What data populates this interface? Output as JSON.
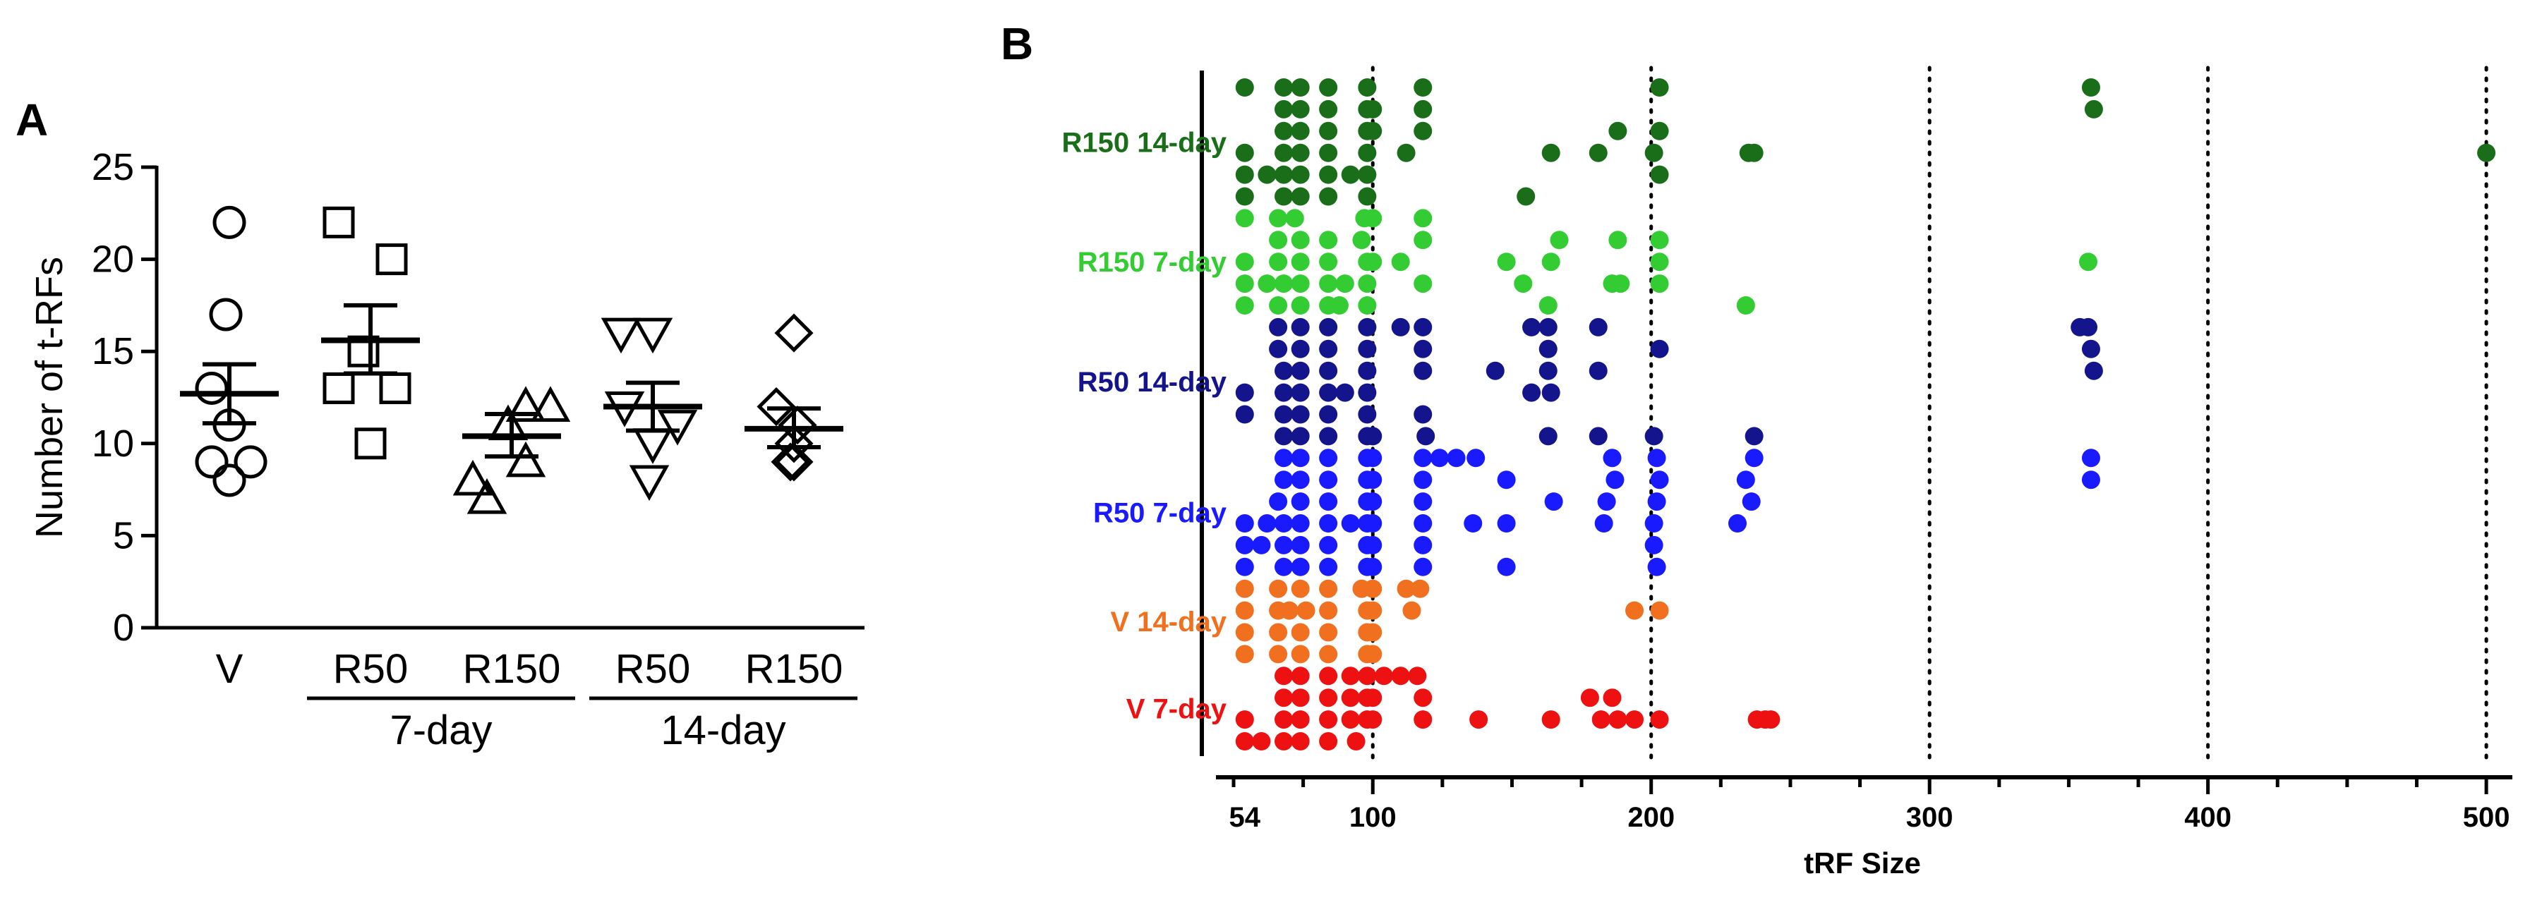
{
  "chart_data": [
    {
      "panel": "A",
      "type": "scatter",
      "ylabel": "Number of t-RFs",
      "ylim": [
        0,
        25
      ],
      "yticks": [
        "0",
        "5",
        "10",
        "15",
        "20",
        "25"
      ],
      "groups": [
        {
          "label": "V",
          "marker": "circle",
          "values": [
            22,
            17,
            13,
            11,
            9,
            9,
            8
          ],
          "mean": 12.7,
          "sem_low": 11.1,
          "sem_high": 14.3
        },
        {
          "label": "R50",
          "marker": "square",
          "values": [
            22,
            20,
            15,
            13,
            13,
            10
          ],
          "mean": 15.6,
          "sem_low": 13.8,
          "sem_high": 17.5
        },
        {
          "label": "R150",
          "marker": "triangle-up",
          "values": [
            12,
            12,
            11,
            9,
            8,
            7
          ],
          "mean": 10.4,
          "sem_low": 9.3,
          "sem_high": 11.6
        },
        {
          "label": "R50",
          "marker": "triangle-down",
          "values": [
            16,
            16,
            12,
            11,
            10,
            8
          ],
          "mean": 12.0,
          "sem_low": 10.7,
          "sem_high": 13.3
        },
        {
          "label": "R150",
          "marker": "diamond",
          "values": [
            16,
            12,
            11,
            10,
            9,
            9
          ],
          "mean": 10.8,
          "sem_low": 9.8,
          "sem_high": 11.9
        }
      ],
      "group_labels": [
        {
          "label": "7-day",
          "covers": [
            1,
            2
          ]
        },
        {
          "label": "14-day",
          "covers": [
            3,
            4
          ]
        }
      ]
    },
    {
      "panel": "B",
      "type": "scatter",
      "xlabel": "tRF Size",
      "xticks": [
        "54",
        "100",
        "200",
        "300",
        "400",
        "500"
      ],
      "xtick_values": [
        54,
        100,
        200,
        300,
        400,
        500
      ],
      "xlim": [
        50,
        502
      ],
      "vlines": [
        100,
        200,
        300,
        400,
        500
      ],
      "series": [
        {
          "name": "R150 14-day",
          "color": "#1A6E1A",
          "rows": [
            [
              54,
              68,
              74,
              84,
              98,
              118,
              203,
              358
            ],
            [
              68,
              74,
              84,
              98,
              100,
              118,
              359
            ],
            [
              68,
              74,
              84,
              98,
              100,
              118,
              188,
              203
            ],
            [
              54,
              68,
              74,
              84,
              98,
              112,
              164,
              181,
              201,
              235,
              237,
              500
            ],
            [
              54,
              62,
              68,
              74,
              84,
              92,
              98,
              203
            ],
            [
              54,
              68,
              74,
              84,
              98,
              155
            ]
          ]
        },
        {
          "name": "R150 7-day",
          "color": "#33CC33",
          "rows": [
            [
              54,
              66,
              72,
              97,
              100,
              118
            ],
            [
              66,
              74,
              84,
              96,
              118,
              167,
              188,
              203
            ],
            [
              54,
              66,
              74,
              84,
              98,
              100,
              110,
              148,
              164,
              203,
              357
            ],
            [
              54,
              62,
              68,
              74,
              84,
              90,
              98,
              118,
              154,
              186,
              189,
              203
            ],
            [
              54,
              66,
              74,
              84,
              88,
              98,
              163,
              234
            ]
          ]
        },
        {
          "name": "R50 14-day",
          "color": "#14148C",
          "rows": [
            [
              66,
              74,
              84,
              98,
              110,
              118,
              157,
              163,
              181,
              354,
              357
            ],
            [
              66,
              74,
              84,
              98,
              118,
              163,
              203,
              358
            ],
            [
              68,
              74,
              84,
              98,
              118,
              144,
              163,
              181,
              359
            ],
            [
              54,
              68,
              74,
              84,
              90,
              98,
              157,
              164
            ],
            [
              54,
              68,
              74,
              84,
              98,
              118
            ],
            [
              68,
              74,
              84,
              98,
              100,
              119,
              163,
              181,
              201,
              237
            ]
          ]
        },
        {
          "name": "R50 7-day",
          "color": "#1A1AFF",
          "rows": [
            [
              68,
              74,
              84,
              98,
              100,
              118,
              124,
              130,
              137,
              186,
              202,
              237,
              358
            ],
            [
              68,
              74,
              84,
              98,
              100,
              118,
              148,
              187,
              203,
              234,
              358
            ],
            [
              66,
              74,
              84,
              98,
              100,
              118,
              165,
              184,
              202,
              236
            ],
            [
              54,
              62,
              68,
              74,
              84,
              92,
              98,
              100,
              118,
              136,
              148,
              183,
              201,
              231
            ],
            [
              54,
              60,
              68,
              74,
              84,
              98,
              100,
              118,
              201
            ],
            [
              54,
              68,
              74,
              84,
              98,
              100,
              118,
              148,
              202
            ]
          ]
        },
        {
          "name": "V 14-day",
          "color": "#F07020",
          "rows": [
            [
              54,
              66,
              74,
              84,
              96,
              100,
              112,
              117
            ],
            [
              54,
              66,
              70,
              76,
              84,
              98,
              100,
              114,
              194,
              203
            ],
            [
              54,
              66,
              74,
              84,
              98,
              100
            ],
            [
              54,
              66,
              74,
              84,
              98,
              100
            ]
          ]
        },
        {
          "name": "V 7-day",
          "color": "#EE1111",
          "rows": [
            [
              68,
              74,
              84,
              92,
              98,
              104,
              110,
              116
            ],
            [
              68,
              74,
              84,
              92,
              98,
              100,
              118,
              178,
              186
            ],
            [
              54,
              68,
              74,
              84,
              92,
              98,
              100,
              118,
              138,
              164,
              182,
              188,
              194,
              203,
              238,
              241,
              243
            ],
            [
              54,
              60,
              68,
              74,
              84,
              94
            ]
          ]
        }
      ]
    }
  ],
  "panel_labels": {
    "a": "A",
    "b": "B"
  }
}
